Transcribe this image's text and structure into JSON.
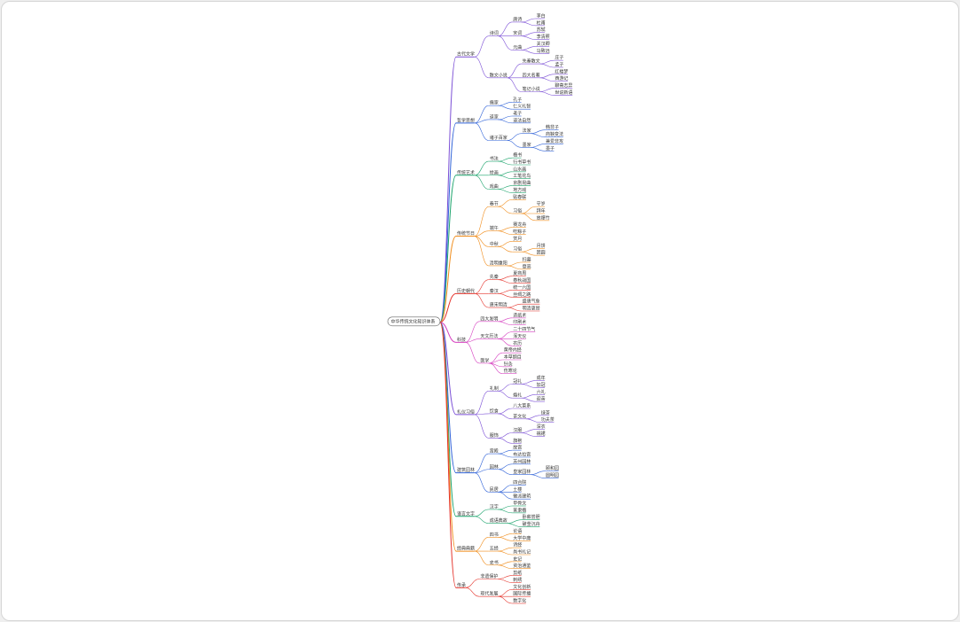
{
  "root": {
    "label": "中华传统文化知识体系",
    "children": [
      {
        "label": "古代文学",
        "color": "#7b4fd6",
        "children": [
          {
            "label": "诗词",
            "children": [
              {
                "label": "唐诗",
                "children": [
                  {
                    "label": "李白"
                  },
                  {
                    "label": "杜甫"
                  }
                ]
              },
              {
                "label": "宋词",
                "children": [
                  {
                    "label": "苏轼"
                  },
                  {
                    "label": "李清照"
                  }
                ]
              },
              {
                "label": "元曲",
                "children": [
                  {
                    "label": "关汉卿"
                  },
                  {
                    "label": "马致远"
                  }
                ]
              }
            ]
          },
          {
            "label": "散文小说",
            "children": [
              {
                "label": "先秦散文",
                "children": [
                  {
                    "label": "庄子"
                  },
                  {
                    "label": "孟子"
                  }
                ]
              },
              {
                "label": "四大名著",
                "children": [
                  {
                    "label": "红楼梦"
                  },
                  {
                    "label": "西游记"
                  }
                ]
              },
              {
                "label": "笔记小说",
                "children": [
                  {
                    "label": "聊斋志异"
                  },
                  {
                    "label": "世说新语"
                  }
                ]
              }
            ]
          }
        ]
      },
      {
        "label": "哲学思想",
        "color": "#2f62d8",
        "children": [
          {
            "label": "儒家",
            "children": [
              {
                "label": "孔子"
              },
              {
                "label": "仁义礼智"
              }
            ]
          },
          {
            "label": "道家",
            "children": [
              {
                "label": "老子"
              },
              {
                "label": "道法自然"
              }
            ]
          },
          {
            "label": "诸子百家",
            "children": [
              {
                "label": "法家",
                "children": [
                  {
                    "label": "韩非子"
                  },
                  {
                    "label": "商鞅变法"
                  }
                ]
              },
              {
                "label": "墨家",
                "children": [
                  {
                    "label": "兼爱非攻"
                  },
                  {
                    "label": "墨子"
                  }
                ]
              }
            ]
          }
        ]
      },
      {
        "label": "传统艺术",
        "color": "#1aa36b",
        "children": [
          {
            "label": "书法",
            "children": [
              {
                "label": "楷书"
              },
              {
                "label": "行书草书"
              }
            ]
          },
          {
            "label": "绘画",
            "children": [
              {
                "label": "山水画"
              },
              {
                "label": "工笔花鸟"
              }
            ]
          },
          {
            "label": "戏曲",
            "children": [
              {
                "label": "京剧昆曲"
              },
              {
                "label": "地方戏"
              }
            ]
          }
        ]
      },
      {
        "label": "传统节日",
        "color": "#f08c1a",
        "children": [
          {
            "label": "春节",
            "children": [
              {
                "label": "贴春联"
              },
              {
                "label": "习俗",
                "children": [
                  {
                    "label": "守岁"
                  },
                  {
                    "label": "拜年"
                  },
                  {
                    "label": "放爆竹"
                  }
                ]
              }
            ]
          },
          {
            "label": "端午",
            "children": [
              {
                "label": "赛龙舟"
              },
              {
                "label": "吃粽子"
              }
            ]
          },
          {
            "label": "中秋",
            "children": [
              {
                "label": "赏月"
              },
              {
                "label": "习俗",
                "children": [
                  {
                    "label": "月饼"
                  },
                  {
                    "label": "团圆"
                  }
                ]
              }
            ]
          },
          {
            "label": "清明重阳",
            "children": [
              {
                "label": "扫墓"
              },
              {
                "label": "登高"
              }
            ]
          }
        ]
      },
      {
        "label": "历史朝代",
        "color": "#e5342c",
        "children": [
          {
            "label": "先秦",
            "children": [
              {
                "label": "夏商周"
              },
              {
                "label": "春秋战国"
              }
            ]
          },
          {
            "label": "秦汉",
            "children": [
              {
                "label": "统一六国"
              },
              {
                "label": "丝绸之路"
              }
            ]
          },
          {
            "label": "唐宋明清",
            "children": [
              {
                "label": "盛唐气象"
              },
              {
                "label": "明清更替"
              }
            ]
          }
        ]
      },
      {
        "label": "科技",
        "color": "#d63fc0",
        "children": [
          {
            "label": "四大发明",
            "children": [
              {
                "label": "造纸术"
              },
              {
                "label": "印刷术"
              }
            ]
          },
          {
            "label": "天文历法",
            "children": [
              {
                "label": "二十四节气"
              },
              {
                "label": "浑天仪"
              },
              {
                "label": "农历"
              }
            ]
          },
          {
            "label": "医学",
            "children": [
              {
                "label": "黄帝内经"
              },
              {
                "label": "本草纲目"
              },
              {
                "label": "针灸"
              },
              {
                "label": "伤寒论"
              }
            ]
          }
        ]
      },
      {
        "label": "礼仪习俗",
        "color": "#7b4fd6",
        "children": [
          {
            "label": "礼制",
            "children": [
              {
                "label": "冠礼",
                "children": [
                  {
                    "label": "成年"
                  },
                  {
                    "label": "加冠"
                  }
                ]
              },
              {
                "label": "婚礼",
                "children": [
                  {
                    "label": "六礼"
                  },
                  {
                    "label": "迎亲"
                  }
                ]
              }
            ]
          },
          {
            "label": "饮食",
            "children": [
              {
                "label": "八大菜系"
              },
              {
                "label": "茶文化",
                "children": [
                  {
                    "label": "绿茶"
                  },
                  {
                    "label": "功夫茶"
                  }
                ]
              }
            ]
          },
          {
            "label": "服饰",
            "children": [
              {
                "label": "汉服",
                "children": [
                  {
                    "label": "深衣"
                  },
                  {
                    "label": "襦裙"
                  }
                ]
              },
              {
                "label": "旗袍"
              }
            ]
          }
        ]
      },
      {
        "label": "建筑园林",
        "color": "#2f62d8",
        "children": [
          {
            "label": "宫殿",
            "children": [
              {
                "label": "故宫"
              },
              {
                "label": "布达拉宫"
              }
            ]
          },
          {
            "label": "园林",
            "children": [
              {
                "label": "苏州园林"
              },
              {
                "label": "皇家园林",
                "children": [
                  {
                    "label": "颐和园"
                  },
                  {
                    "label": "圆明园"
                  }
                ]
              }
            ]
          },
          {
            "label": "民居",
            "children": [
              {
                "label": "四合院"
              },
              {
                "label": "土楼"
              },
              {
                "label": "徽派建筑"
              }
            ]
          }
        ]
      },
      {
        "label": "语言文字",
        "color": "#1aa36b",
        "children": [
          {
            "label": "汉字",
            "children": [
              {
                "label": "甲骨文"
              },
              {
                "label": "篆隶楷"
              }
            ]
          },
          {
            "label": "成语典故",
            "children": [
              {
                "label": "卧薪尝胆"
              },
              {
                "label": "破釜沉舟"
              }
            ]
          }
        ]
      },
      {
        "label": "经典典籍",
        "color": "#f08c1a",
        "children": [
          {
            "label": "四书",
            "children": [
              {
                "label": "论语"
              },
              {
                "label": "大学中庸"
              }
            ]
          },
          {
            "label": "五经",
            "children": [
              {
                "label": "诗经"
              },
              {
                "label": "尚书礼记"
              }
            ]
          },
          {
            "label": "史书",
            "children": [
              {
                "label": "史记"
              },
              {
                "label": "资治通鉴"
              }
            ]
          }
        ]
      },
      {
        "label": "传承",
        "color": "#e5342c",
        "children": [
          {
            "label": "非遗保护",
            "children": [
              {
                "label": "剪纸"
              },
              {
                "label": "刺绣"
              }
            ]
          },
          {
            "label": "现代发展",
            "children": [
              {
                "label": "文化创新"
              },
              {
                "label": "国际传播"
              },
              {
                "label": "数字化"
              }
            ]
          }
        ]
      }
    ]
  }
}
